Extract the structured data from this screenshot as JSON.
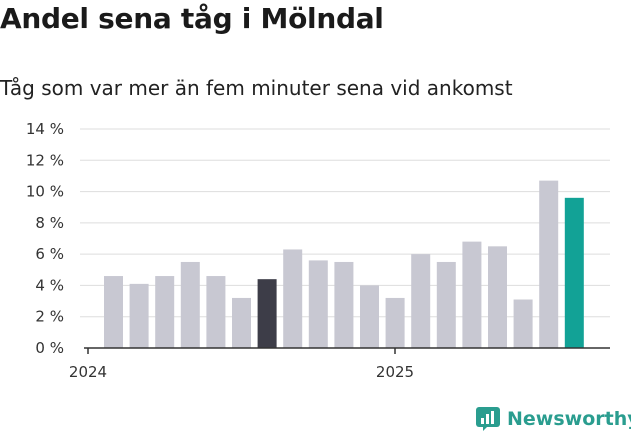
{
  "chart_title": "Andel sena tåg i Mölndal",
  "chart_subtitle": "Tåg som var mer än fem minuter sena vid ankomst",
  "brand": {
    "name": "Newsworthy"
  },
  "colors": {
    "default_bar": "#c8c8d2",
    "highlight_2024": "#3d3d48",
    "highlight_latest": "#12a296",
    "axis": "#333333",
    "grid": "#dddddd"
  },
  "chart_data": {
    "type": "bar",
    "ylim": [
      0,
      14
    ],
    "y_ticks": [
      "0 %",
      "2 %",
      "4 %",
      "6 %",
      "8 %",
      "10 %",
      "12 %",
      "14 %"
    ],
    "x_tick_labels": [
      "2024",
      "2025"
    ],
    "grid": true,
    "series": [
      {
        "values": [
          4.6,
          4.1,
          4.6,
          5.5,
          4.6,
          3.2,
          4.4,
          6.3,
          5.6,
          5.5,
          4.0,
          3.2,
          6.0,
          5.5,
          6.8,
          6.5,
          3.1,
          10.7,
          9.6
        ],
        "highlight": {
          "6": "highlight_2024",
          "18": "highlight_latest"
        }
      }
    ]
  }
}
